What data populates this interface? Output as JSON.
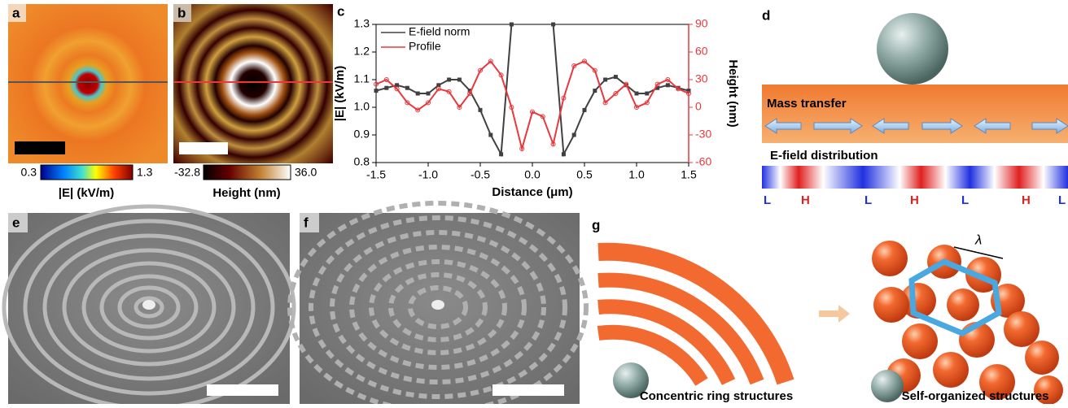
{
  "panels": {
    "a": "a",
    "b": "b",
    "c": "c",
    "d": "d",
    "e": "e",
    "f": "f",
    "g": "g"
  },
  "colorbar_a": {
    "min": "0.3",
    "max": "1.3",
    "label": "|E| (kV/m)"
  },
  "colorbar_b": {
    "min": "-32.8",
    "max": "36.0",
    "label": "Height (nm)"
  },
  "panel_d": {
    "mass_transfer": "Mass transfer",
    "efield": "E-field distribution",
    "markers": [
      "L",
      "H",
      "L",
      "H",
      "L",
      "H",
      "L"
    ]
  },
  "panel_g": {
    "lambda": "λ",
    "left": "Concentric ring structures",
    "right": "Self-organized structures"
  },
  "chart_data": {
    "type": "line",
    "xlabel": "Distance (μm)",
    "ylabel": "|E| (kV/m)",
    "y2label": "Height (nm)",
    "x": [
      -1.5,
      -1.4,
      -1.3,
      -1.2,
      -1.1,
      -1.0,
      -0.9,
      -0.8,
      -0.7,
      -0.6,
      -0.5,
      -0.4,
      -0.3,
      -0.2,
      -0.1,
      0,
      0.1,
      0.2,
      0.3,
      0.4,
      0.5,
      0.6,
      0.7,
      0.8,
      0.9,
      1.0,
      1.1,
      1.2,
      1.3,
      1.4,
      1.5
    ],
    "series": [
      {
        "name": "E-field norm",
        "color": "#404040",
        "values": [
          1.06,
          1.07,
          1.08,
          1.07,
          1.05,
          1.05,
          1.08,
          1.1,
          1.1,
          1.06,
          0.99,
          0.9,
          0.83,
          1.3,
          null,
          null,
          null,
          1.3,
          0.83,
          0.9,
          0.99,
          1.06,
          1.1,
          1.11,
          1.08,
          1.05,
          1.05,
          1.07,
          1.08,
          1.07,
          1.06
        ]
      },
      {
        "name": "Profile",
        "color": "#e8383d",
        "axis": "y2",
        "values": [
          25,
          30,
          20,
          5,
          -3,
          5,
          20,
          17,
          0,
          15,
          40,
          50,
          35,
          0,
          -45,
          -5,
          -10,
          -40,
          10,
          45,
          50,
          40,
          5,
          15,
          25,
          0,
          5,
          25,
          30,
          20,
          15
        ]
      }
    ],
    "xlim": [
      -1.5,
      1.5
    ],
    "xticks": [
      -1.5,
      {
        "value": -1,
        "label": "-1.0"
      },
      -0.5,
      {
        "value": 0,
        "label": "0.0"
      },
      0.5,
      {
        "value": 1,
        "label": "1.0"
      },
      1.5
    ],
    "ylim": [
      0.8,
      1.3
    ],
    "yticks": [
      0.8,
      0.9,
      {
        "value": 1,
        "label": "1.0"
      },
      1.1,
      1.2,
      1.3
    ],
    "y2lim": [
      -60,
      90
    ],
    "y2ticks": [
      -60,
      -30,
      0,
      30,
      60,
      90
    ],
    "legend": "upper left"
  }
}
